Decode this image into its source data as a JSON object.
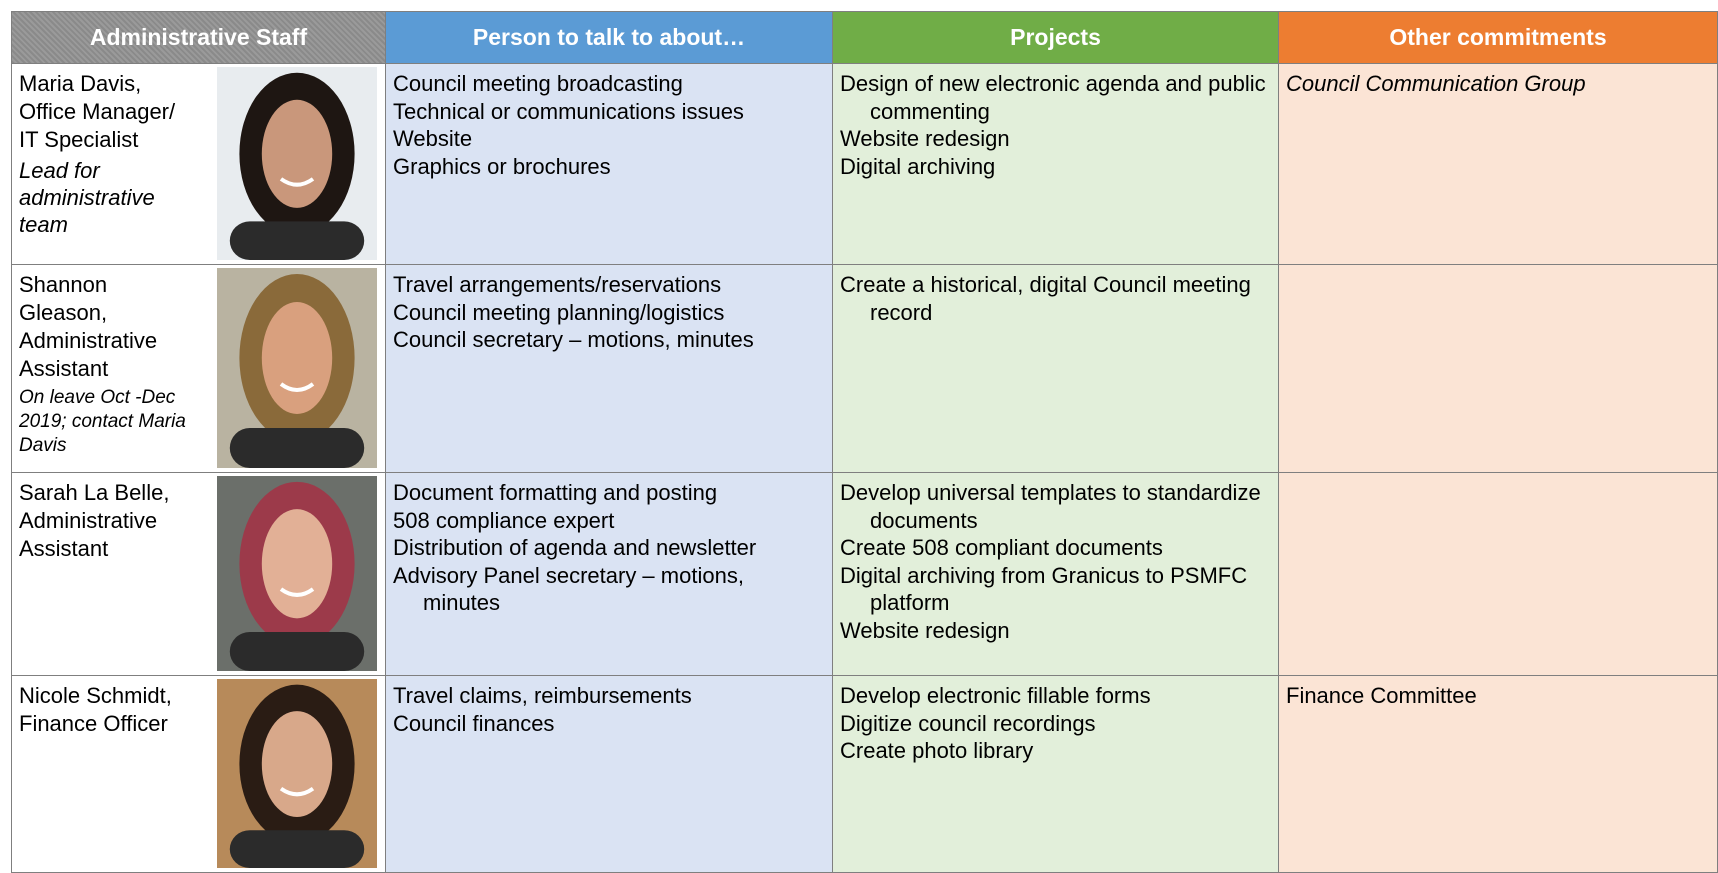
{
  "table": {
    "headers": [
      "Administrative Staff",
      "Person to talk to about…",
      "Projects",
      "Other commitments"
    ],
    "rows": [
      {
        "name_lines": [
          "Maria Davis,",
          "Office Manager/",
          "IT Specialist"
        ],
        "note": "Lead for administrative team",
        "talk": [
          "Council meeting broadcasting",
          "Technical or communications issues",
          "Website",
          "Graphics or brochures"
        ],
        "projects": [
          "Design of new electronic agenda and public commenting",
          "Website redesign",
          "Digital archiving"
        ],
        "commitments": [
          "Council Communication Group"
        ],
        "commitments_italic": true
      },
      {
        "name_lines": [
          "Shannon",
          "Gleason,",
          "Administrative",
          "Assistant"
        ],
        "note": "On leave Oct -Dec 2019; contact Maria Davis",
        "talk": [
          "Travel arrangements/reservations",
          "Council meeting planning/logistics",
          "Council secretary – motions, minutes"
        ],
        "projects": [
          "Create a historical, digital Council meeting record"
        ],
        "commitments": []
      },
      {
        "name_lines": [
          "Sarah La Belle,",
          "Administrative",
          "Assistant"
        ],
        "talk": [
          "Document formatting and posting",
          "508 compliance expert",
          "Distribution of agenda and newsletter",
          "Advisory Panel secretary – motions, minutes"
        ],
        "projects": [
          "Develop universal templates to standardize documents",
          "Create 508 compliant documents",
          "Digital archiving from Granicus to PSMFC platform",
          "Website redesign"
        ],
        "commitments": []
      },
      {
        "name_lines": [
          "Nicole Schmidt,",
          "Finance Officer"
        ],
        "talk": [
          "Travel claims, reimbursements",
          "Council finances"
        ],
        "projects": [
          "Develop electronic fillable forms",
          "Digitize council recordings",
          "Create photo library"
        ],
        "commitments": [
          "Finance Committee"
        ],
        "commitments_italic": false
      }
    ]
  }
}
